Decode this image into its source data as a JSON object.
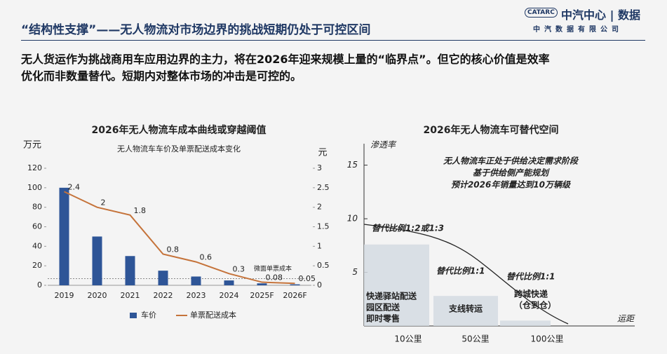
{
  "header": {
    "title": "“结构性支撑”——无人物流对市场边界的挑战短期仍处于可控区间",
    "logo_mark": "CATARC",
    "logo_text": "中汽中心 | 数据",
    "company": "中汽数据有限公司"
  },
  "body": [
    "无人货运作为挑战商用车应用边界的主力，将在2026年迎来规模上量的“临界点”。但它的核心价值是效率",
    "优化而非数量替代。短期内对整体市场的冲击是可控的。"
  ],
  "chart_data": [
    {
      "type": "bar",
      "title": "2026年无人物流车成本曲线或穿越阈值",
      "subtitle": "无人物流车车价及单票配送成本变化",
      "ylabel": "万元",
      "y2label": "元",
      "categories": [
        "2019",
        "2020",
        "2021",
        "2022",
        "2023",
        "2024",
        "2025F",
        "2026F"
      ],
      "series": [
        {
          "name": "车价",
          "type": "bar",
          "color": "#2e5597",
          "values": [
            100,
            50,
            30,
            15,
            9,
            5,
            2,
            1
          ]
        },
        {
          "name": "单票配送成本",
          "type": "line",
          "axis": "y2",
          "color": "#c5733a",
          "values": [
            2.4,
            2,
            1.8,
            0.8,
            0.6,
            0.3,
            0.08,
            0.05
          ]
        }
      ],
      "ylim": [
        0,
        120
      ],
      "yticks": [
        0,
        20,
        40,
        60,
        80,
        100,
        120
      ],
      "y2lim": [
        0,
        3
      ],
      "y2ticks": [
        0,
        0.5,
        1,
        1.5,
        2,
        2.5,
        3
      ],
      "threshold": {
        "label": "微面单票成本",
        "value": 0.17,
        "axis": "y2",
        "color": "#c00000"
      },
      "legend": "bottom"
    },
    {
      "type": "bar",
      "title": "2026年无人物流车可替代空间",
      "ylabel": "渗透率",
      "xlabel": "运距",
      "categories": [
        "10公里",
        "50公里",
        "100公里"
      ],
      "series": [
        {
          "color": "#d3dae2",
          "values": [
            7.6,
            2.8,
            0.5
          ]
        }
      ],
      "ylim": [
        0,
        17
      ],
      "yticks": [
        5,
        10,
        15
      ],
      "notes": [
        "无人物流车正处于供给决定需求阶段",
        "基于供给侧产能规划",
        "预计2026年销量达到10万辆级"
      ],
      "ratios": [
        "替代比例1:2或1:3",
        "替代比例1:1",
        "替代比例1:1"
      ],
      "box_labels": [
        [
          "快递驿站配送",
          "园区配送",
          "即时零售"
        ],
        [
          "支线转运"
        ],
        [
          "跨城快递",
          "（仓到仓）"
        ]
      ]
    }
  ]
}
